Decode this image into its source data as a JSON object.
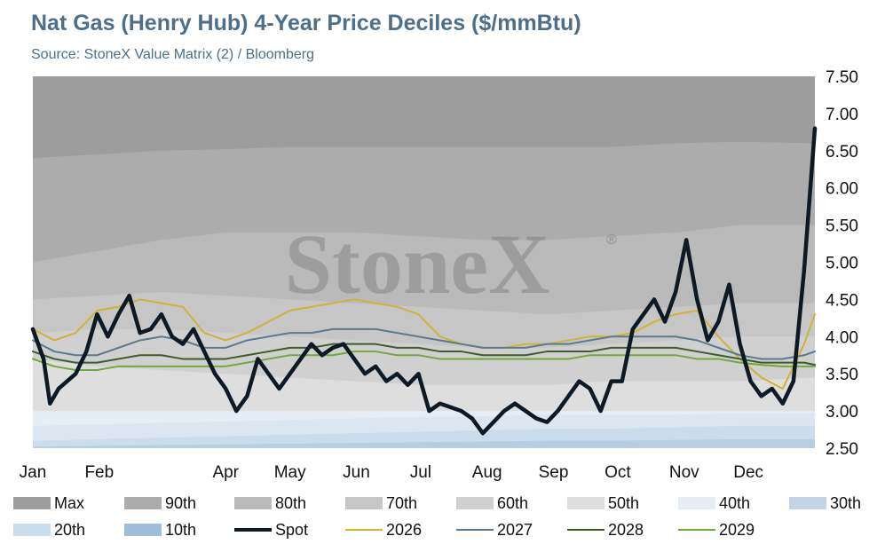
{
  "header": {
    "title": "Nat Gas (Henry Hub) 4-Year Price Deciles ($/mmBtu)",
    "subtitle": "Source: StoneX Value Matrix (2) / Bloomberg"
  },
  "watermark": "StoneX",
  "watermark_mark": "®",
  "chart_data": {
    "type": "area",
    "x_ticks": [
      "Jan",
      "Feb",
      "Apr",
      "May",
      "Jun",
      "Jul",
      "Aug",
      "Sep",
      "Oct",
      "Nov",
      "Dec"
    ],
    "x_tick_days": [
      0,
      31,
      90,
      120,
      151,
      181,
      212,
      243,
      273,
      304,
      334
    ],
    "y_ticks": [
      2.5,
      3.0,
      3.5,
      4.0,
      4.5,
      5.0,
      5.5,
      6.0,
      6.5,
      7.0,
      7.5
    ],
    "ylim": [
      2.5,
      7.5
    ],
    "xlim_days": [
      0,
      365
    ],
    "y_axis_position": "right",
    "grid": false,
    "legend_position": "bottom",
    "bands_x_days": [
      0,
      30,
      60,
      90,
      120,
      150,
      180,
      210,
      240,
      270,
      300,
      330,
      365
    ],
    "bands": [
      {
        "name": "Max",
        "color": "#9d9d9d",
        "top": [
          7.5,
          7.5,
          7.5,
          7.5,
          7.5,
          7.5,
          7.5,
          7.5,
          7.5,
          7.5,
          7.5,
          7.5,
          7.5
        ]
      },
      {
        "name": "90th",
        "color": "#acacac",
        "top": [
          6.4,
          6.45,
          6.5,
          6.52,
          6.55,
          6.55,
          6.55,
          6.55,
          6.55,
          6.55,
          6.6,
          6.62,
          6.6
        ]
      },
      {
        "name": "80th",
        "color": "#bababa",
        "top": [
          5.0,
          5.15,
          5.3,
          5.4,
          5.4,
          5.4,
          5.35,
          5.3,
          5.3,
          5.35,
          5.4,
          5.5,
          5.5
        ]
      },
      {
        "name": "70th",
        "color": "#c6c6c6",
        "top": [
          4.5,
          4.55,
          4.6,
          4.55,
          4.5,
          4.45,
          4.4,
          4.35,
          4.3,
          4.35,
          4.4,
          4.45,
          4.45
        ]
      },
      {
        "name": "60th",
        "color": "#d0d0d0",
        "top": [
          4.05,
          4.1,
          4.1,
          4.05,
          4.0,
          3.95,
          3.9,
          3.85,
          3.85,
          3.9,
          3.95,
          4.0,
          4.0
        ]
      },
      {
        "name": "50th",
        "color": "#dedede",
        "top": [
          3.7,
          3.6,
          3.55,
          3.5,
          3.45,
          3.4,
          3.35,
          3.35,
          3.35,
          3.4,
          3.4,
          3.4,
          3.45
        ]
      },
      {
        "name": "40th",
        "color": "#e6edf5",
        "top": [
          3.0,
          3.0,
          3.0,
          3.0,
          3.0,
          3.0,
          3.0,
          3.0,
          3.0,
          3.0,
          3.0,
          3.0,
          3.0
        ]
      },
      {
        "name": "30th",
        "color": "#dbe6f1",
        "top": [
          2.8,
          2.82,
          2.84,
          2.86,
          2.88,
          2.9,
          2.92,
          2.93,
          2.95,
          2.95,
          2.95,
          2.97,
          2.97
        ]
      },
      {
        "name": "20th",
        "color": "#cbdcec",
        "top": [
          2.6,
          2.62,
          2.64,
          2.66,
          2.68,
          2.7,
          2.72,
          2.74,
          2.76,
          2.76,
          2.78,
          2.8,
          2.8
        ]
      },
      {
        "name": "10th",
        "color": "#b6cde3",
        "top": [
          2.52,
          2.53,
          2.54,
          2.55,
          2.56,
          2.57,
          2.58,
          2.59,
          2.6,
          2.6,
          2.61,
          2.62,
          2.62
        ]
      }
    ],
    "series": [
      {
        "name": "Spot",
        "color": "#0d1a26",
        "width": 4.5,
        "x": [
          0,
          5,
          8,
          12,
          16,
          20,
          25,
          30,
          35,
          40,
          45,
          50,
          55,
          60,
          65,
          70,
          75,
          80,
          85,
          90,
          95,
          100,
          105,
          110,
          115,
          120,
          125,
          130,
          135,
          140,
          145,
          150,
          155,
          160,
          165,
          170,
          175,
          180,
          185,
          190,
          195,
          200,
          205,
          210,
          215,
          220,
          225,
          230,
          235,
          240,
          245,
          250,
          255,
          260,
          265,
          270,
          275,
          280,
          285,
          290,
          295,
          300,
          305,
          310,
          315,
          320,
          325,
          330,
          335,
          340,
          345,
          350,
          355,
          360,
          365
        ],
        "y": [
          4.1,
          3.7,
          3.1,
          3.3,
          3.4,
          3.5,
          3.8,
          4.3,
          4.0,
          4.3,
          4.55,
          4.05,
          4.1,
          4.3,
          4.0,
          3.9,
          4.1,
          3.8,
          3.5,
          3.3,
          3.0,
          3.2,
          3.7,
          3.5,
          3.3,
          3.5,
          3.7,
          3.9,
          3.75,
          3.85,
          3.9,
          3.7,
          3.5,
          3.6,
          3.4,
          3.5,
          3.35,
          3.5,
          3.0,
          3.1,
          3.05,
          3.0,
          2.9,
          2.7,
          2.85,
          3.0,
          3.1,
          3.0,
          2.9,
          2.85,
          3.0,
          3.2,
          3.4,
          3.3,
          3.0,
          3.4,
          3.4,
          4.1,
          4.3,
          4.5,
          4.2,
          4.6,
          5.3,
          4.5,
          3.95,
          4.2,
          4.7,
          3.9,
          3.4,
          3.2,
          3.3,
          3.1,
          3.4,
          4.9,
          6.8
        ]
      },
      {
        "name": "2026",
        "color": "#cfb434",
        "width": 2,
        "x": [
          0,
          10,
          20,
          30,
          40,
          50,
          60,
          70,
          80,
          90,
          100,
          110,
          120,
          130,
          140,
          150,
          160,
          170,
          180,
          190,
          200,
          210,
          220,
          230,
          240,
          250,
          260,
          270,
          280,
          290,
          300,
          310,
          320,
          330,
          340,
          350,
          360,
          365
        ],
        "y": [
          4.1,
          3.95,
          4.05,
          4.35,
          4.4,
          4.5,
          4.45,
          4.4,
          4.05,
          3.95,
          4.05,
          4.2,
          4.35,
          4.4,
          4.45,
          4.5,
          4.45,
          4.4,
          4.3,
          4.0,
          3.9,
          3.85,
          3.85,
          3.9,
          3.9,
          3.95,
          4.0,
          4.0,
          4.05,
          4.2,
          4.3,
          4.35,
          4.0,
          3.7,
          3.45,
          3.3,
          3.9,
          4.3
        ]
      },
      {
        "name": "2027",
        "color": "#5b7a90",
        "width": 2,
        "x": [
          0,
          10,
          20,
          30,
          40,
          50,
          60,
          70,
          80,
          90,
          100,
          110,
          120,
          130,
          140,
          150,
          160,
          170,
          180,
          190,
          200,
          210,
          220,
          230,
          240,
          250,
          260,
          270,
          280,
          290,
          300,
          310,
          320,
          330,
          340,
          350,
          360,
          365
        ],
        "y": [
          3.95,
          3.8,
          3.75,
          3.75,
          3.85,
          3.95,
          4.0,
          3.95,
          3.85,
          3.85,
          3.95,
          4.0,
          4.05,
          4.05,
          4.1,
          4.1,
          4.1,
          4.05,
          4.0,
          3.95,
          3.9,
          3.85,
          3.85,
          3.85,
          3.9,
          3.9,
          3.95,
          4.0,
          4.0,
          4.0,
          4.0,
          3.95,
          3.85,
          3.75,
          3.7,
          3.7,
          3.75,
          3.8
        ]
      },
      {
        "name": "2028",
        "color": "#3d5c29",
        "width": 2,
        "x": [
          0,
          10,
          20,
          30,
          40,
          50,
          60,
          70,
          80,
          90,
          100,
          110,
          120,
          130,
          140,
          150,
          160,
          170,
          180,
          190,
          200,
          210,
          220,
          230,
          240,
          250,
          260,
          270,
          280,
          290,
          300,
          310,
          320,
          330,
          340,
          350,
          360,
          365
        ],
        "y": [
          3.8,
          3.7,
          3.65,
          3.65,
          3.7,
          3.75,
          3.75,
          3.7,
          3.7,
          3.7,
          3.75,
          3.8,
          3.85,
          3.85,
          3.9,
          3.9,
          3.9,
          3.85,
          3.85,
          3.8,
          3.8,
          3.75,
          3.75,
          3.75,
          3.8,
          3.8,
          3.8,
          3.85,
          3.85,
          3.85,
          3.85,
          3.8,
          3.75,
          3.7,
          3.65,
          3.65,
          3.65,
          3.62
        ]
      },
      {
        "name": "2029",
        "color": "#72a83c",
        "width": 2,
        "x": [
          0,
          10,
          20,
          30,
          40,
          50,
          60,
          70,
          80,
          90,
          100,
          110,
          120,
          130,
          140,
          150,
          160,
          170,
          180,
          190,
          200,
          210,
          220,
          230,
          240,
          250,
          260,
          270,
          280,
          290,
          300,
          310,
          320,
          330,
          340,
          350,
          360,
          365
        ],
        "y": [
          3.7,
          3.6,
          3.55,
          3.55,
          3.6,
          3.6,
          3.6,
          3.6,
          3.6,
          3.6,
          3.65,
          3.7,
          3.75,
          3.75,
          3.75,
          3.8,
          3.8,
          3.75,
          3.75,
          3.7,
          3.7,
          3.7,
          3.7,
          3.7,
          3.7,
          3.7,
          3.75,
          3.75,
          3.75,
          3.75,
          3.75,
          3.7,
          3.7,
          3.65,
          3.62,
          3.6,
          3.6,
          3.6
        ]
      }
    ]
  },
  "legend": [
    {
      "label": "Max",
      "kind": "band",
      "color": "#9d9d9d"
    },
    {
      "label": "90th",
      "kind": "band",
      "color": "#acacac"
    },
    {
      "label": "80th",
      "kind": "band",
      "color": "#bababa"
    },
    {
      "label": "70th",
      "kind": "band",
      "color": "#c6c6c6"
    },
    {
      "label": "60th",
      "kind": "band",
      "color": "#d0d0d0"
    },
    {
      "label": "50th",
      "kind": "band",
      "color": "#dedede"
    },
    {
      "label": "40th",
      "kind": "band",
      "color": "#e6edf5"
    },
    {
      "label": "30th",
      "kind": "band",
      "color": "#c2d5e8"
    },
    {
      "label": "20th",
      "kind": "band",
      "color": "#cbdcec"
    },
    {
      "label": "10th",
      "kind": "band",
      "color": "#9dbddb"
    },
    {
      "label": "Spot",
      "kind": "line",
      "color": "#0d1a26",
      "width": 4
    },
    {
      "label": "2026",
      "kind": "line",
      "color": "#cfb434",
      "width": 2
    },
    {
      "label": "2027",
      "kind": "line",
      "color": "#5b7a90",
      "width": 2
    },
    {
      "label": "2028",
      "kind": "line",
      "color": "#3d5c29",
      "width": 2
    },
    {
      "label": "2029",
      "kind": "line",
      "color": "#72a83c",
      "width": 2
    }
  ]
}
